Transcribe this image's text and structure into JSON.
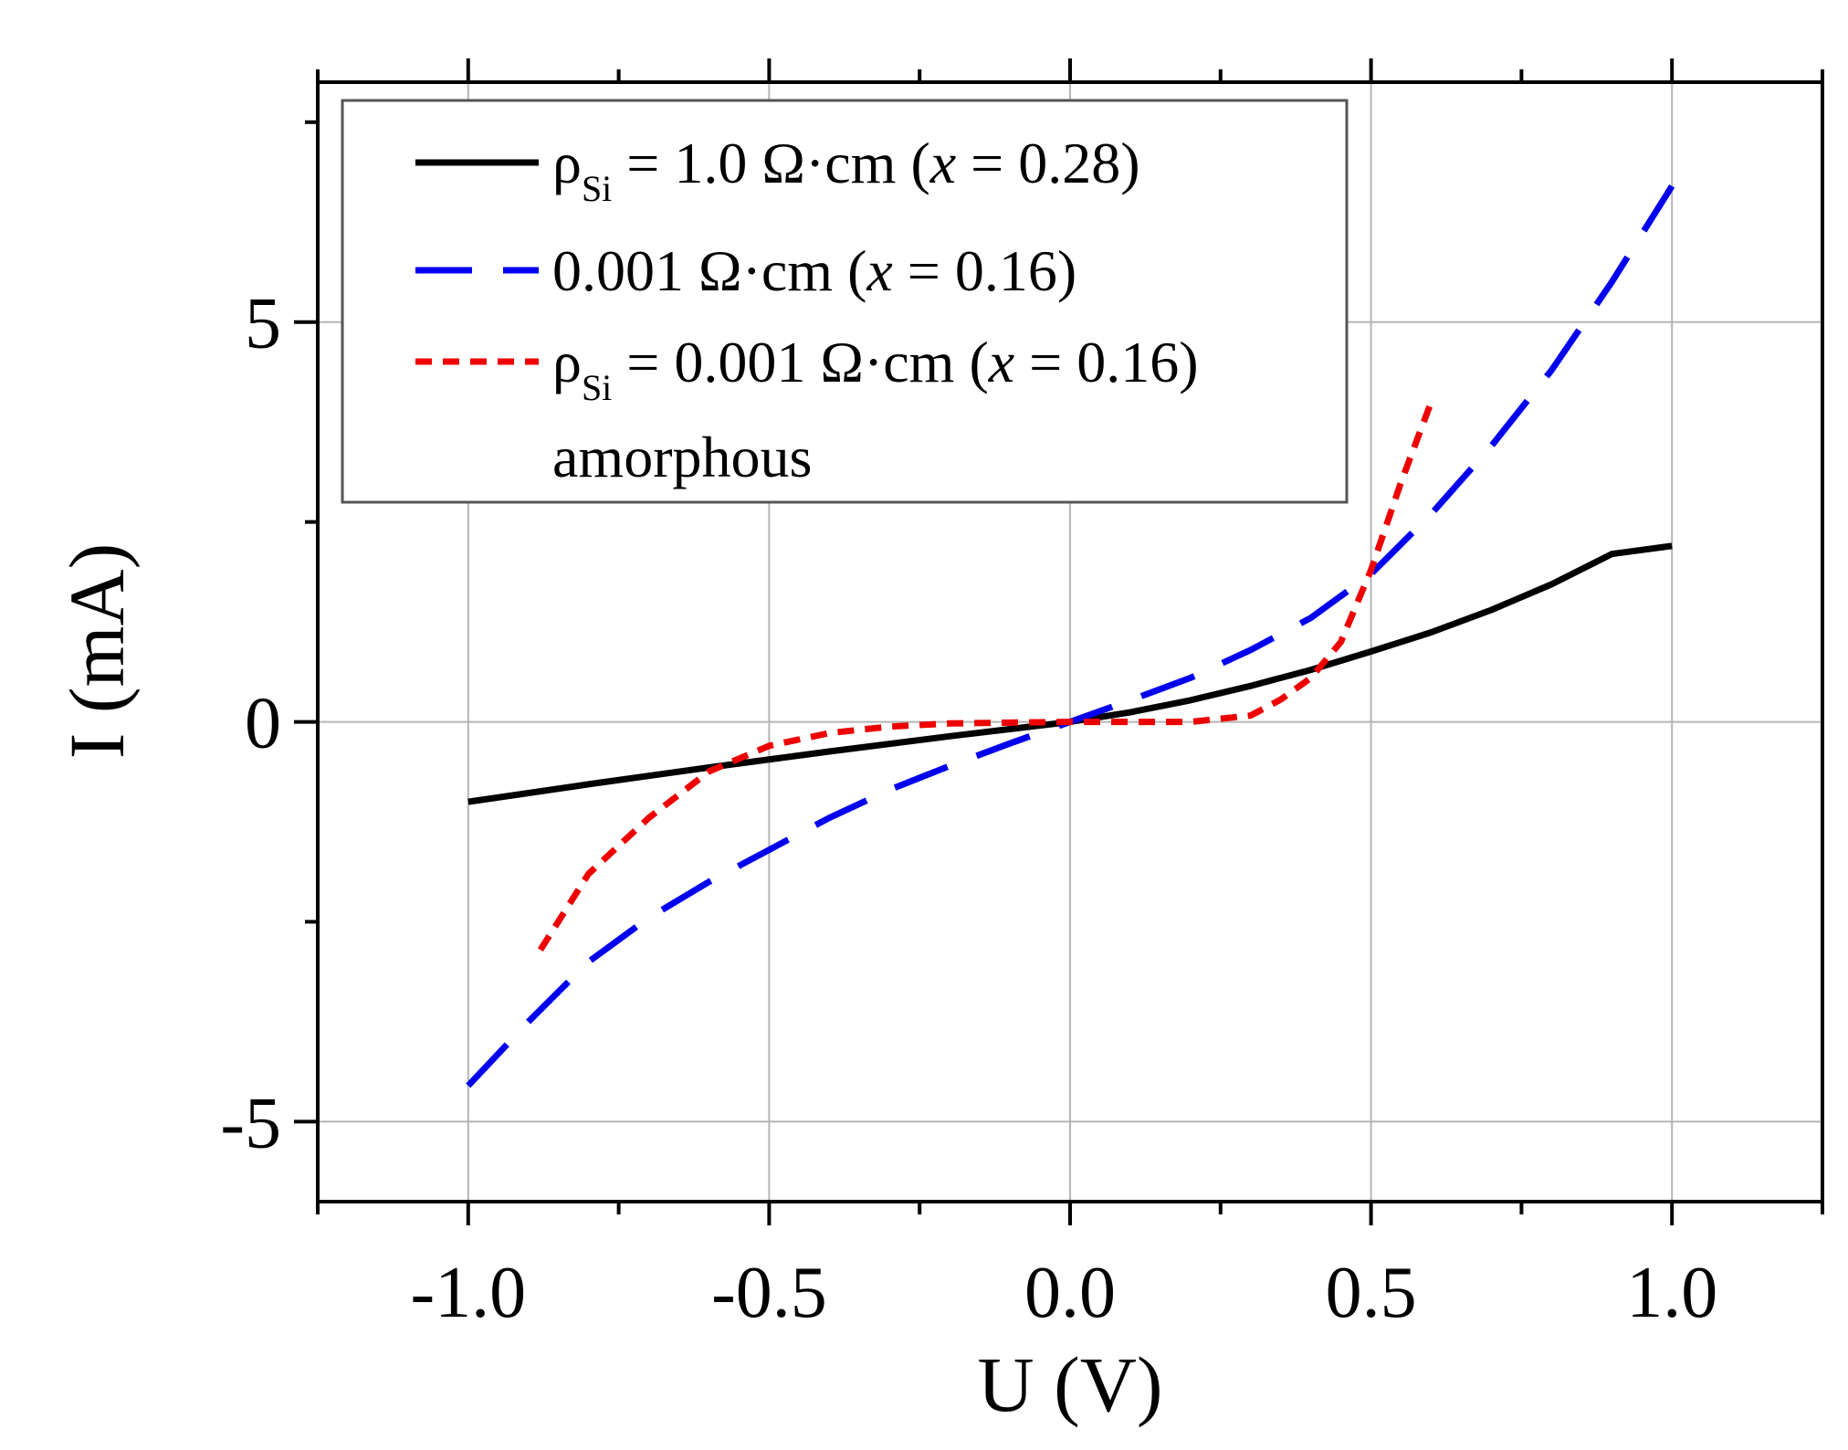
{
  "chart_data": {
    "type": "line",
    "title": "",
    "xlabel": "U (V)",
    "ylabel": "I (mA)",
    "xlim": [
      -1.25,
      1.25
    ],
    "ylim": [
      -6,
      8
    ],
    "grid": true,
    "legend_position": "top-left",
    "xticks": [
      -1.0,
      -0.5,
      0.0,
      0.5,
      1.0
    ],
    "xtick_labels": [
      "-1.0",
      "-0.5",
      "0.0",
      "0.5",
      "1.0"
    ],
    "yticks": [
      -5,
      0,
      5
    ],
    "ytick_labels": [
      "-5",
      "0",
      "5"
    ],
    "series": [
      {
        "name": "ρSi = 1.0 Ω·cm (x = 0.28)",
        "style": "solid",
        "color": "#000000",
        "x": [
          -1.0,
          -0.8,
          -0.6,
          -0.4,
          -0.2,
          0.0,
          0.1,
          0.2,
          0.3,
          0.4,
          0.5,
          0.6,
          0.7,
          0.8,
          0.9,
          1.0
        ],
        "y": [
          -1.0,
          -0.78,
          -0.57,
          -0.37,
          -0.18,
          0.0,
          0.12,
          0.27,
          0.45,
          0.65,
          0.88,
          1.12,
          1.4,
          1.72,
          2.1,
          2.2
        ]
      },
      {
        "name": "0.001 Ω·cm (x = 0.16)",
        "style": "dashed",
        "color": "#0000ee",
        "x": [
          -1.0,
          -0.9,
          -0.8,
          -0.7,
          -0.6,
          -0.5,
          -0.4,
          -0.3,
          -0.2,
          -0.1,
          0.0,
          0.1,
          0.2,
          0.3,
          0.4,
          0.5,
          0.6,
          0.7,
          0.8,
          0.9,
          1.0
        ],
        "y": [
          -4.55,
          -3.75,
          -3.0,
          -2.45,
          -2.0,
          -1.6,
          -1.2,
          -0.85,
          -0.55,
          -0.27,
          0.0,
          0.27,
          0.55,
          0.9,
          1.3,
          1.85,
          2.6,
          3.45,
          4.4,
          5.5,
          6.7
        ]
      },
      {
        "name": "ρSi = 0.001 Ω·cm (x = 0.16) amorphous",
        "style": "dotted",
        "color": "#ee0000",
        "x": [
          -0.88,
          -0.8,
          -0.7,
          -0.6,
          -0.5,
          -0.4,
          -0.3,
          -0.2,
          -0.1,
          0.0,
          0.1,
          0.2,
          0.3,
          0.35,
          0.4,
          0.45,
          0.5,
          0.55,
          0.6
        ],
        "y": [
          -2.85,
          -1.9,
          -1.2,
          -0.62,
          -0.3,
          -0.14,
          -0.06,
          -0.02,
          -0.01,
          0.0,
          0.0,
          0.0,
          0.08,
          0.28,
          0.55,
          1.0,
          1.9,
          3.0,
          4.0
        ]
      }
    ],
    "legend": {
      "entries": [
        {
          "prefix": "ρ",
          "sub": "Si",
          "text": " = 1.0 Ω·cm (",
          "italic": "x",
          "suffix": " = 0.28)"
        },
        {
          "prefix": "",
          "sub": "",
          "text": "0.001 Ω·cm (",
          "italic": "x",
          "suffix": " = 0.16)"
        },
        {
          "prefix": "ρ",
          "sub": "Si",
          "text": " = 0.001 Ω·cm (",
          "italic": "x",
          "suffix": " = 0.16)",
          "second_line": "amorphous"
        }
      ]
    }
  }
}
